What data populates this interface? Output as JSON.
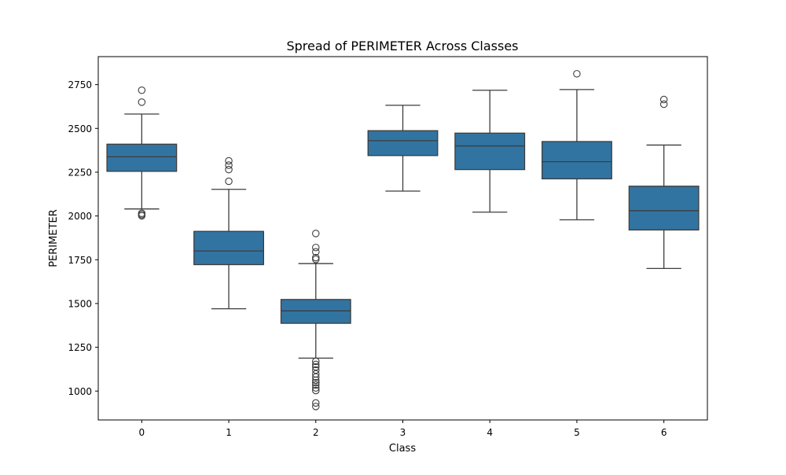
{
  "chart_data": {
    "type": "box",
    "title": "Spread of PERIMETER Across Classes",
    "xlabel": "Class",
    "ylabel": "PERIMETER",
    "ylim": [
      835,
      2910
    ],
    "yticks": [
      1000,
      1250,
      1500,
      1750,
      2000,
      2250,
      2500,
      2750
    ],
    "grid": false,
    "box_color": "#3274a1",
    "edge_color": "#3d3d3d",
    "categories": [
      "0",
      "1",
      "2",
      "3",
      "4",
      "5",
      "6"
    ],
    "boxes": [
      {
        "category": "0",
        "whisker_low": 2040,
        "q1": 2255,
        "median": 2338,
        "q3": 2410,
        "whisker_high": 2582,
        "outliers": [
          2718,
          2650,
          2015,
          2008,
          2001
        ]
      },
      {
        "category": "1",
        "whisker_low": 1470,
        "q1": 1722,
        "median": 1800,
        "q3": 1912,
        "whisker_high": 2152,
        "outliers": [
          2315,
          2290,
          2265,
          2198
        ]
      },
      {
        "category": "2",
        "whisker_low": 1188,
        "q1": 1387,
        "median": 1458,
        "q3": 1523,
        "whisker_high": 1728,
        "outliers": [
          1900,
          1820,
          1795,
          1762,
          1752,
          1170,
          1152,
          1138,
          1120,
          1098,
          1080,
          1062,
          1048,
          1035,
          1018,
          1003,
          932,
          912
        ]
      },
      {
        "category": "3",
        "whisker_low": 2142,
        "q1": 2345,
        "median": 2430,
        "q3": 2487,
        "whisker_high": 2632,
        "outliers": []
      },
      {
        "category": "4",
        "whisker_low": 2022,
        "q1": 2265,
        "median": 2400,
        "q3": 2473,
        "whisker_high": 2718,
        "outliers": []
      },
      {
        "category": "5",
        "whisker_low": 1978,
        "q1": 2212,
        "median": 2310,
        "q3": 2425,
        "whisker_high": 2722,
        "outliers": [
          2812
        ]
      },
      {
        "category": "6",
        "whisker_low": 1700,
        "q1": 1920,
        "median": 2030,
        "q3": 2170,
        "whisker_high": 2405,
        "outliers": [
          2665,
          2638
        ]
      }
    ]
  }
}
